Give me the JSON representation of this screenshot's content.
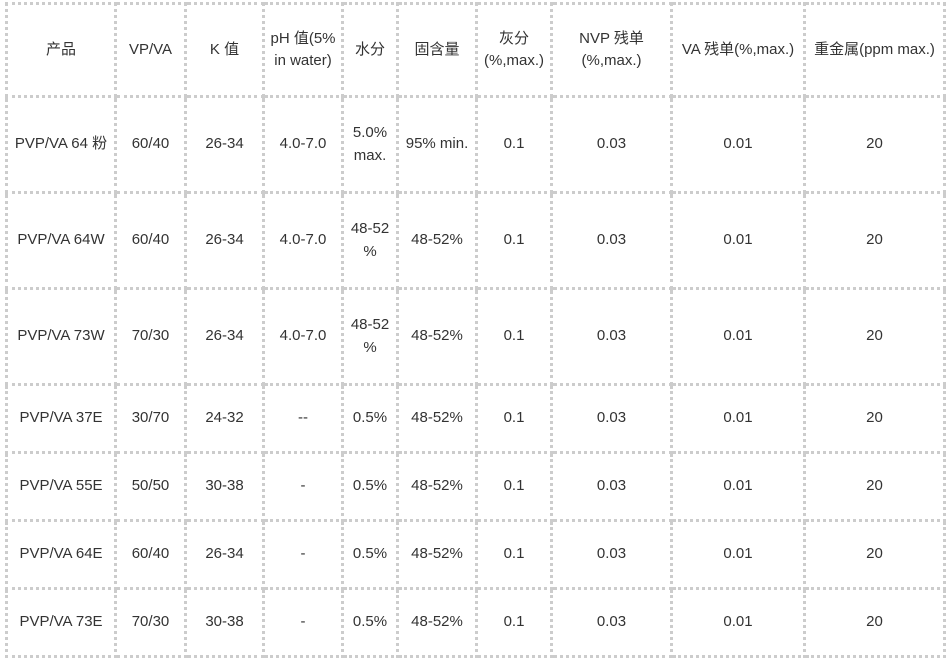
{
  "table": {
    "name": "pvp-va-product-specifications",
    "columns": [
      {
        "key": "product",
        "label": "产品"
      },
      {
        "key": "vp-va",
        "label": "VP/VA"
      },
      {
        "key": "k-value",
        "label": "K 值"
      },
      {
        "key": "ph",
        "label": "pH 值(5% in water)"
      },
      {
        "key": "moisture",
        "label": "水分"
      },
      {
        "key": "solids",
        "label": "固含量"
      },
      {
        "key": "ash",
        "label": "灰分 (%,max.)"
      },
      {
        "key": "nvp-residual",
        "label": "NVP 残单 (%,max.)"
      },
      {
        "key": "va-residual",
        "label": "VA 残单(%,max.)"
      },
      {
        "key": "heavy-metals",
        "label": "重金属(ppm max.)"
      }
    ],
    "rows": [
      [
        "PVP/VA 64 粉",
        "60/40",
        "26-34",
        "4.0-7.0",
        "5.0% max.",
        "95% min.",
        "0.1",
        "0.03",
        "0.01",
        "20"
      ],
      [
        "PVP/VA 64W",
        "60/40",
        "26-34",
        "4.0-7.0",
        "48-52 %",
        "48-52%",
        "0.1",
        "0.03",
        "0.01",
        "20"
      ],
      [
        "PVP/VA 73W",
        "70/30",
        "26-34",
        "4.0-7.0",
        "48-52 %",
        "48-52%",
        "0.1",
        "0.03",
        "0.01",
        "20"
      ],
      [
        "PVP/VA 37E",
        "30/70",
        "24-32",
        "--",
        "0.5%",
        "48-52%",
        "0.1",
        "0.03",
        "0.01",
        "20"
      ],
      [
        "PVP/VA 55E",
        "50/50",
        "30-38",
        "-",
        "0.5%",
        "48-52%",
        "0.1",
        "0.03",
        "0.01",
        "20"
      ],
      [
        "PVP/VA 64E",
        "60/40",
        "26-34",
        "-",
        "0.5%",
        "48-52%",
        "0.1",
        "0.03",
        "0.01",
        "20"
      ],
      [
        "PVP/VA 73E",
        "70/30",
        "30-38",
        "-",
        "0.5%",
        "48-52%",
        "0.1",
        "0.03",
        "0.01",
        "20"
      ]
    ]
  },
  "colors": {
    "border": "#cccccc",
    "text": "#333333",
    "background": "#ffffff"
  }
}
